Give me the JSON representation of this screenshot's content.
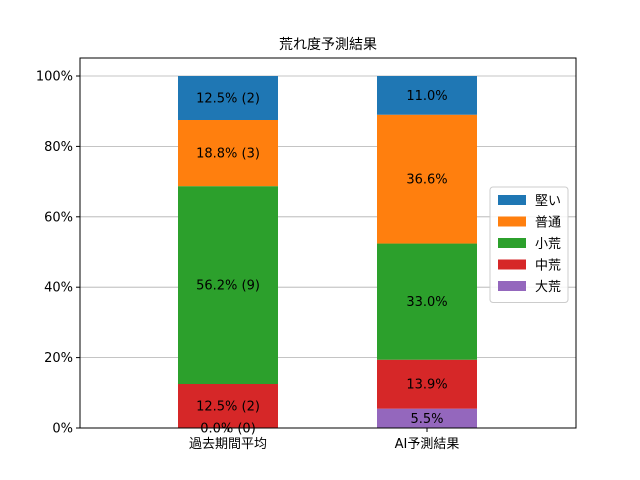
{
  "chart_data": {
    "type": "bar",
    "stacked": true,
    "title": "荒れ度予測結果",
    "categories": [
      "過去期間平均",
      "AI予測結果"
    ],
    "ylim": [
      0,
      100
    ],
    "y_ticks": [
      "0%",
      "20%",
      "40%",
      "60%",
      "80%",
      "100%"
    ],
    "grid": true,
    "legend_position": "right",
    "series": [
      {
        "name": "大荒",
        "color": "#9467bd",
        "values": [
          0.0,
          5.5
        ],
        "labels": [
          "0.0% (0)",
          "5.5%"
        ]
      },
      {
        "name": "中荒",
        "color": "#d62728",
        "values": [
          12.5,
          13.9
        ],
        "labels": [
          "12.5% (2)",
          "13.9%"
        ]
      },
      {
        "name": "小荒",
        "color": "#2ca02c",
        "values": [
          56.2,
          33.0
        ],
        "labels": [
          "56.2% (9)",
          "33.0%"
        ]
      },
      {
        "name": "普通",
        "color": "#ff7f0e",
        "values": [
          18.8,
          36.6
        ],
        "labels": [
          "18.8% (3)",
          "36.6%"
        ]
      },
      {
        "name": "堅い",
        "color": "#1f77b4",
        "values": [
          12.5,
          11.0
        ],
        "labels": [
          "12.5% (2)",
          "11.0%"
        ]
      }
    ],
    "legend_order": [
      "堅い",
      "普通",
      "小荒",
      "中荒",
      "大荒"
    ]
  }
}
